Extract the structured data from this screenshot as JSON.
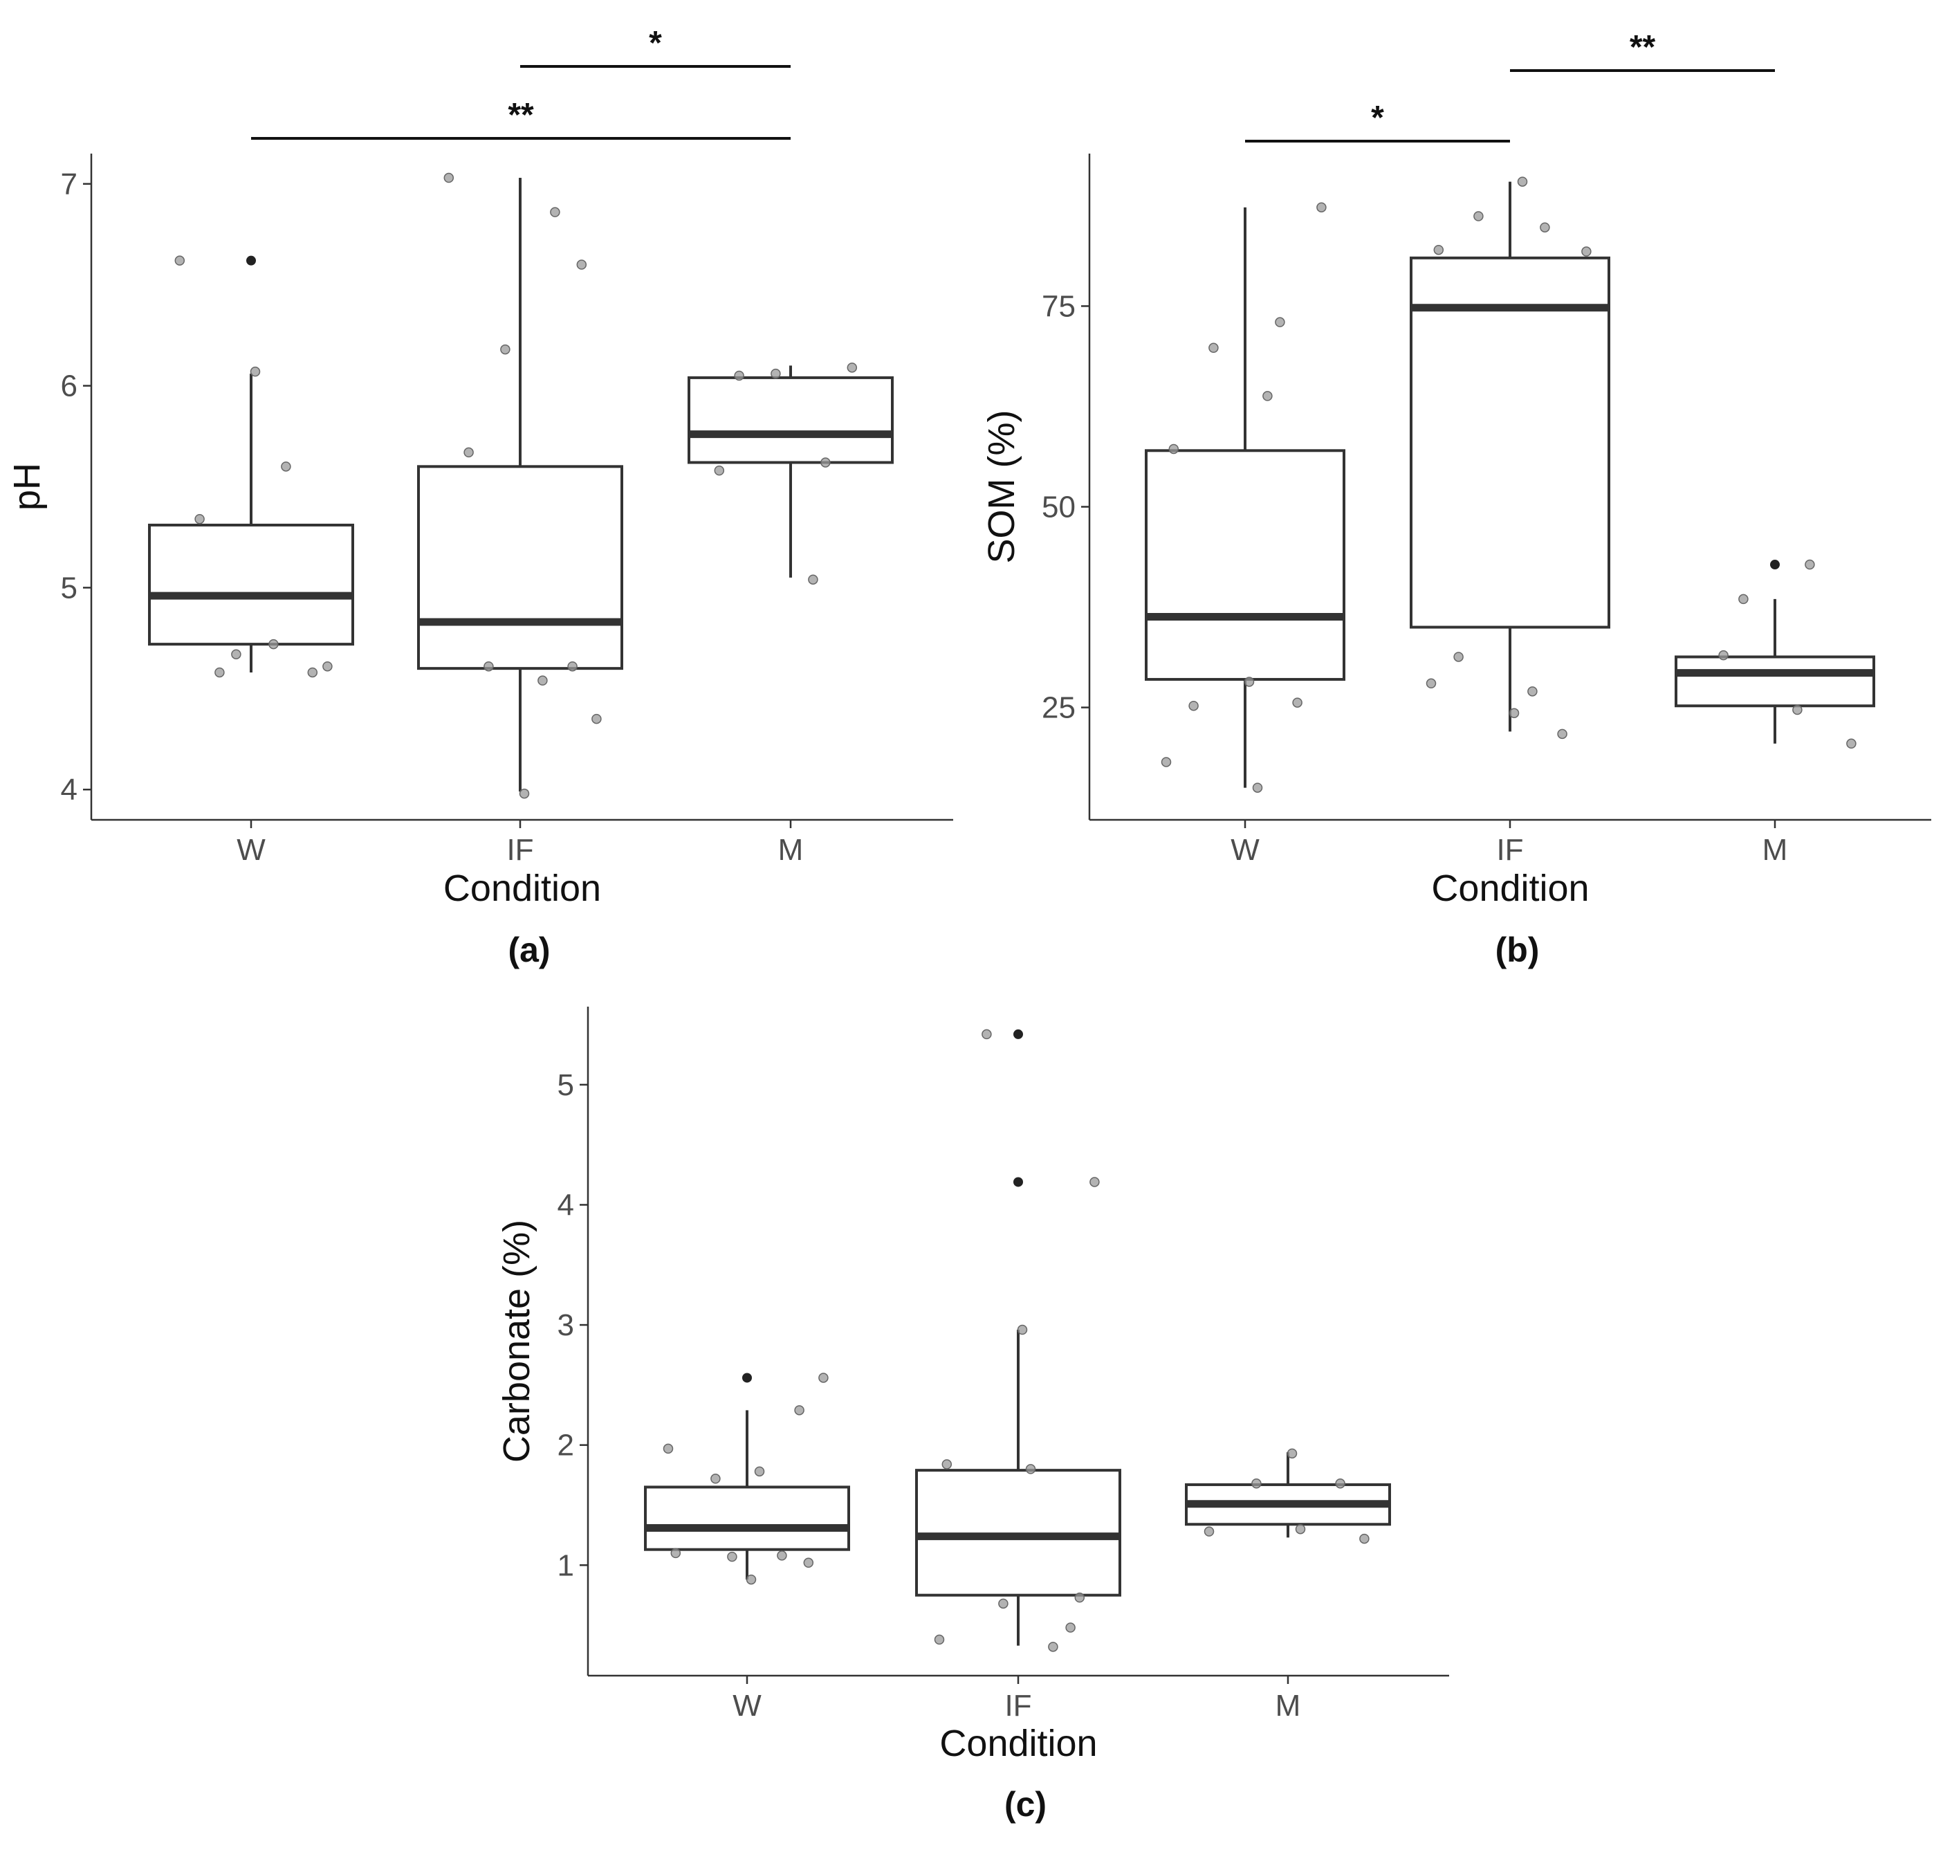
{
  "figure_title": "",
  "chart_data": [
    {
      "type": "box",
      "panel_label": "(a)",
      "xlabel": "Condition",
      "ylabel": "pH",
      "categories": [
        "W",
        "IF",
        "M"
      ],
      "ylim": [
        3.85,
        7.15
      ],
      "yticks": [
        4,
        5,
        6,
        7
      ],
      "boxes": [
        {
          "category": "W",
          "q1": 4.72,
          "median": 4.96,
          "q3": 5.31,
          "whisker_low": 4.58,
          "whisker_high": 6.06,
          "outliers": [
            6.62
          ]
        },
        {
          "category": "IF",
          "q1": 4.6,
          "median": 4.83,
          "q3": 5.6,
          "whisker_low": 3.99,
          "whisker_high": 7.03,
          "outliers": []
        },
        {
          "category": "M",
          "q1": 5.62,
          "median": 5.76,
          "q3": 6.04,
          "whisker_low": 5.05,
          "whisker_high": 6.1,
          "outliers": []
        }
      ],
      "points": [
        {
          "category": "W",
          "values": [
            6.62,
            4.58,
            4.67,
            5.6,
            5.34,
            4.72,
            4.61,
            4.58,
            6.07
          ]
        },
        {
          "category": "IF",
          "values": [
            7.03,
            6.6,
            6.18,
            6.86,
            5.67,
            4.54,
            4.35,
            4.61,
            3.98,
            4.61
          ]
        },
        {
          "category": "M",
          "values": [
            5.58,
            6.09,
            6.06,
            5.62,
            6.05,
            5.04
          ]
        }
      ],
      "significance": [
        {
          "from": "IF",
          "to": "M",
          "label": "*",
          "level": 2
        },
        {
          "from": "W",
          "to": "M",
          "label": "**",
          "level": 1
        }
      ]
    },
    {
      "type": "box",
      "panel_label": "(b)",
      "xlabel": "Condition",
      "ylabel": "SOM (%)",
      "categories": [
        "W",
        "IF",
        "M"
      ],
      "ylim": [
        11,
        94
      ],
      "yticks": [
        25,
        50,
        75
      ],
      "boxes": [
        {
          "category": "W",
          "q1": 28.5,
          "median": 36.3,
          "q3": 57.0,
          "whisker_low": 15.0,
          "whisker_high": 87.3,
          "outliers": []
        },
        {
          "category": "IF",
          "q1": 35.0,
          "median": 74.8,
          "q3": 81.0,
          "whisker_low": 22.0,
          "whisker_high": 90.5,
          "outliers": []
        },
        {
          "category": "M",
          "q1": 25.2,
          "median": 29.3,
          "q3": 31.3,
          "whisker_low": 20.5,
          "whisker_high": 38.5,
          "outliers": [
            42.8
          ]
        }
      ],
      "points": [
        {
          "category": "W",
          "values": [
            73.0,
            25.2,
            63.8,
            87.3,
            69.8,
            28.2,
            25.6,
            18.2,
            15.0,
            57.2
          ]
        },
        {
          "category": "IF",
          "values": [
            84.8,
            31.3,
            27.0,
            81.8,
            86.2,
            24.3,
            21.7,
            28.0,
            90.5,
            82.0
          ]
        },
        {
          "category": "M",
          "values": [
            42.8,
            31.5,
            24.7,
            20.5,
            38.5
          ]
        }
      ],
      "significance": [
        {
          "from": "IF",
          "to": "M",
          "label": "**",
          "level": 2
        },
        {
          "from": "W",
          "to": "IF",
          "label": "*",
          "level": 1
        }
      ]
    },
    {
      "type": "box",
      "panel_label": "(c)",
      "xlabel": "Condition",
      "ylabel": "Carbonate (%)",
      "categories": [
        "W",
        "IF",
        "M"
      ],
      "ylim": [
        0.08,
        5.65
      ],
      "yticks": [
        1,
        2,
        3,
        4,
        5
      ],
      "boxes": [
        {
          "category": "W",
          "q1": 1.13,
          "median": 1.31,
          "q3": 1.65,
          "whisker_low": 0.88,
          "whisker_high": 2.29,
          "outliers": [
            2.56
          ]
        },
        {
          "category": "IF",
          "q1": 0.75,
          "median": 1.24,
          "q3": 1.79,
          "whisker_low": 0.33,
          "whisker_high": 2.96,
          "outliers": [
            4.19,
            5.42
          ]
        },
        {
          "category": "M",
          "q1": 1.34,
          "median": 1.51,
          "q3": 1.67,
          "whisker_low": 1.23,
          "whisker_high": 1.94,
          "outliers": []
        }
      ],
      "points": [
        {
          "category": "W",
          "values": [
            2.56,
            1.72,
            0.88,
            2.29,
            1.97,
            1.78,
            1.1,
            1.02,
            1.07,
            1.08
          ]
        },
        {
          "category": "IF",
          "values": [
            4.19,
            5.42,
            2.96,
            0.48,
            0.38,
            1.8,
            1.84,
            0.73,
            0.68,
            0.32
          ]
        },
        {
          "category": "M",
          "values": [
            1.22,
            1.68,
            1.93,
            1.68,
            1.28,
            1.3
          ]
        }
      ],
      "significance": []
    }
  ]
}
